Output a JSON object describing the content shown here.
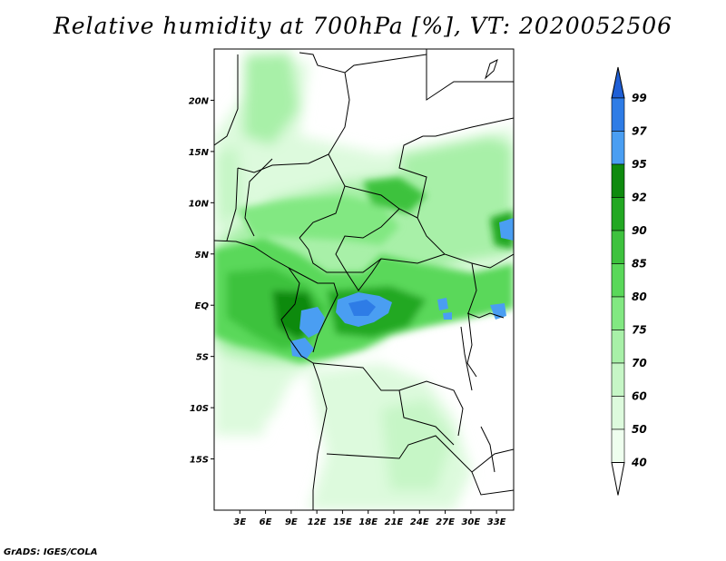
{
  "title": "Relative humidity at 700hPa [%], VT: 2020052506",
  "credit": "GrADS: IGES/COLA",
  "map": {
    "lon_range": [
      0,
      35
    ],
    "lat_range": [
      -20,
      25
    ],
    "lon_labels": [
      "3E",
      "6E",
      "9E",
      "12E",
      "15E",
      "18E",
      "21E",
      "24E",
      "27E",
      "30E",
      "33E"
    ],
    "lat_labels": [
      "20N",
      "15N",
      "10N",
      "5N",
      "EQ",
      "5S",
      "10S",
      "15S"
    ]
  },
  "colorbar": {
    "levels": [
      "99",
      "97",
      "95",
      "92",
      "90",
      "85",
      "80",
      "75",
      "70",
      "60",
      "50",
      "40"
    ],
    "colors": [
      "#1f5fd6",
      "#2e7ce6",
      "#4a9ef2",
      "#0e8a0e",
      "#22a822",
      "#3ec23e",
      "#5ad85a",
      "#82e882",
      "#a8f0a8",
      "#c6f6c6",
      "#ddfadd",
      "#eefeee"
    ]
  }
}
